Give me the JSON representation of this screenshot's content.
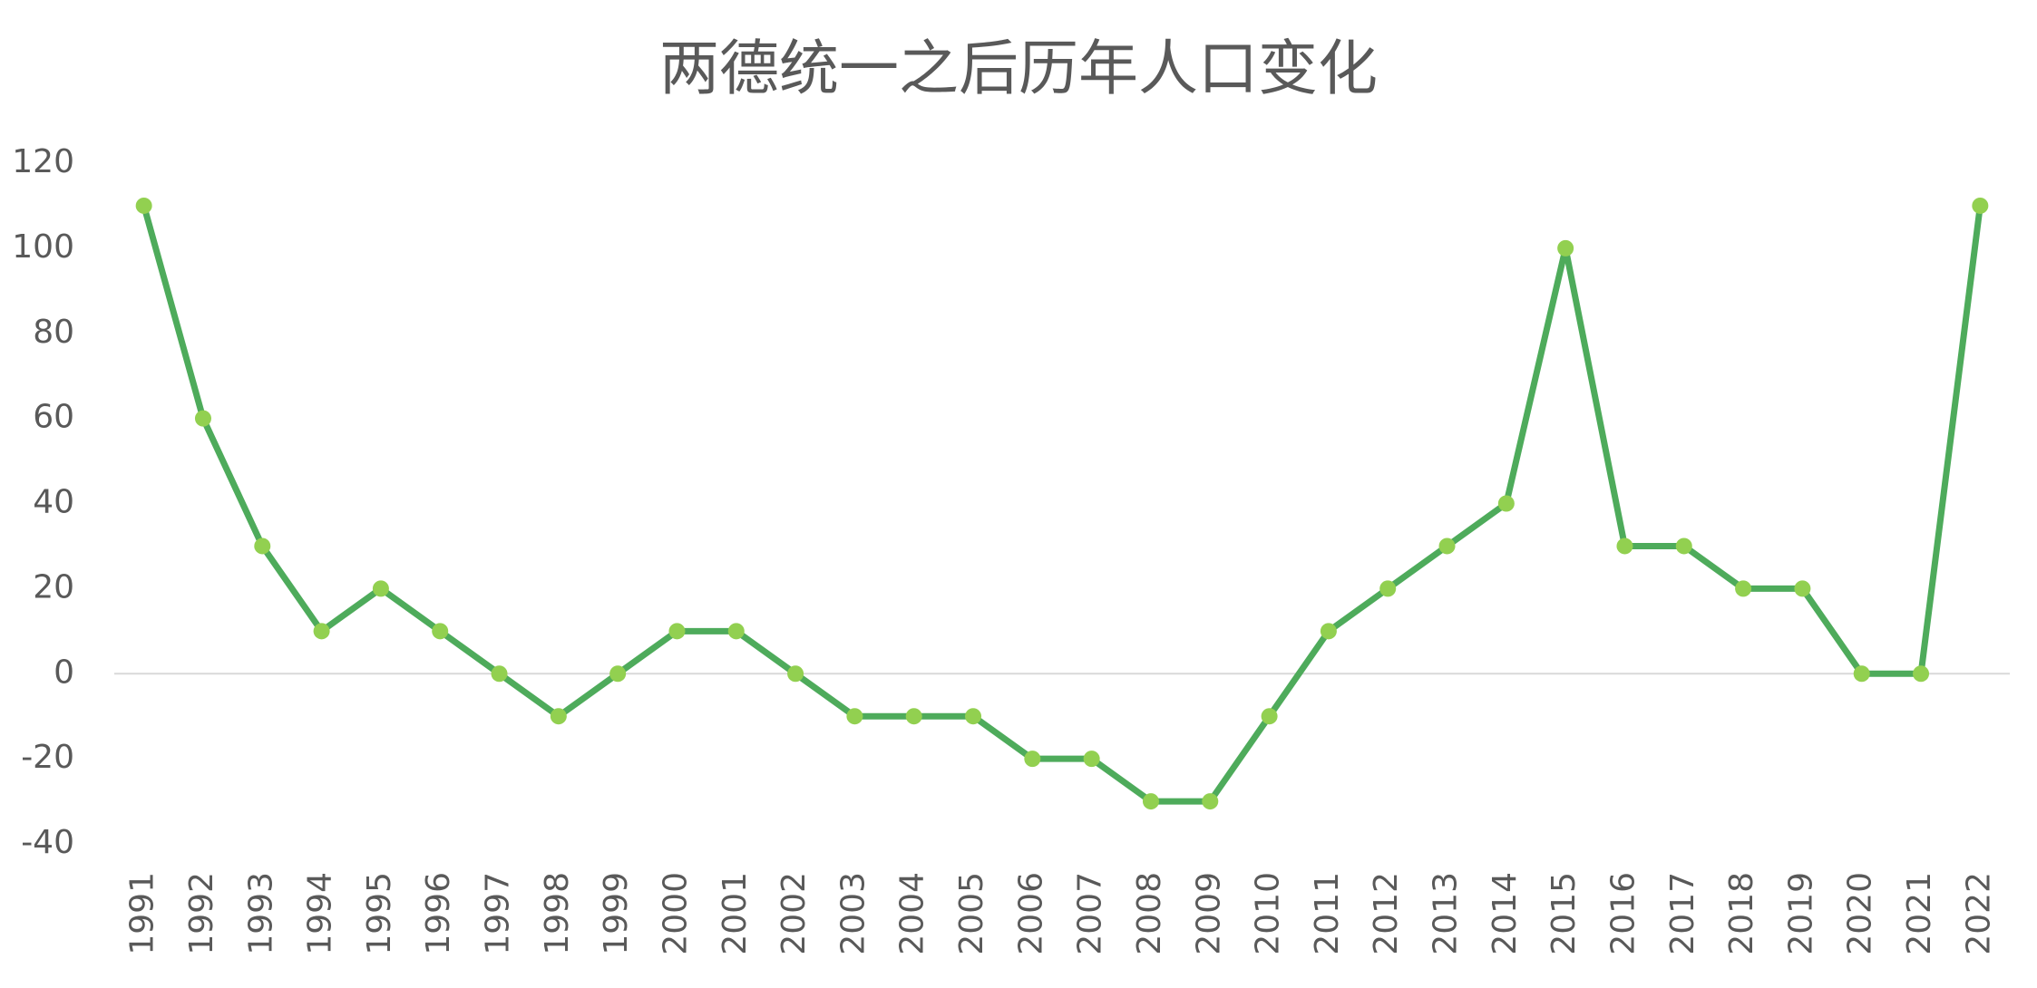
{
  "chart_data": {
    "type": "line",
    "title": "两德统一之后历年人口变化",
    "categories": [
      "1991",
      "1992",
      "1993",
      "1994",
      "1995",
      "1996",
      "1997",
      "1998",
      "1999",
      "2000",
      "2001",
      "2002",
      "2003",
      "2004",
      "2005",
      "2006",
      "2007",
      "2008",
      "2009",
      "2010",
      "2011",
      "2012",
      "2013",
      "2014",
      "2015",
      "2016",
      "2017",
      "2018",
      "2019",
      "2020",
      "2021",
      "2022"
    ],
    "series": [
      {
        "color": "#4eab5b",
        "marker_color": "#92d050",
        "values": [
          110,
          60,
          30,
          10,
          20,
          10,
          0,
          -10,
          0,
          10,
          10,
          0,
          -10,
          -10,
          -10,
          -20,
          -20,
          -30,
          -30,
          -10,
          10,
          20,
          30,
          40,
          100,
          30,
          30,
          20,
          20,
          0,
          0,
          110
        ]
      }
    ],
    "ylim": [
      -40,
      120
    ],
    "yticks": [
      -40,
      -20,
      0,
      20,
      40,
      60,
      80,
      100,
      120
    ],
    "grid": false
  }
}
